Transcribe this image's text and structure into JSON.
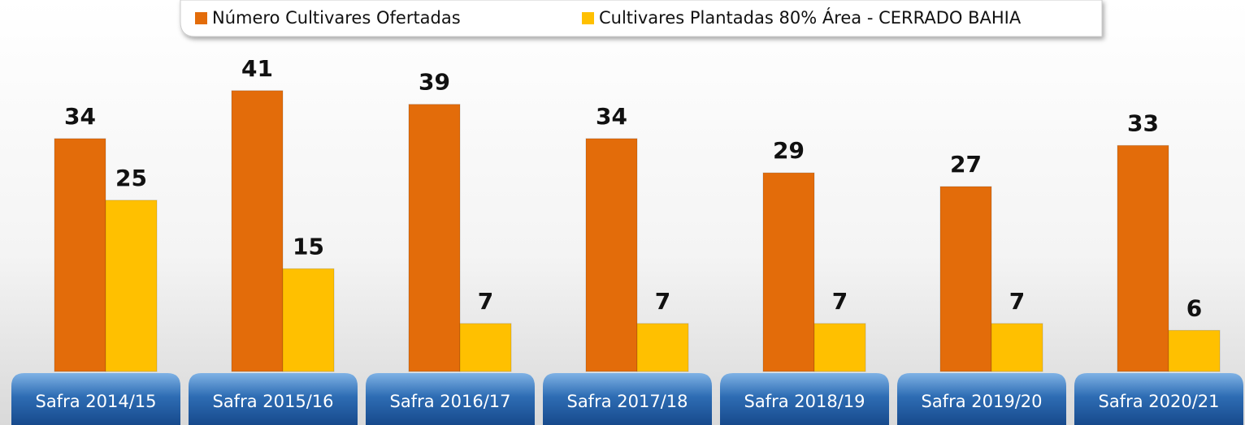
{
  "chart_data": {
    "type": "bar",
    "categories": [
      "Safra 2014/15",
      "Safra 2015/16",
      "Safra 2016/17",
      "Safra 2017/18",
      "Safra 2018/19",
      "Safra 2019/20",
      "Safra 2020/21"
    ],
    "series": [
      {
        "name": "Número Cultivares Ofertadas",
        "color": "#e36c0a",
        "values": [
          34,
          41,
          39,
          34,
          29,
          27,
          33
        ]
      },
      {
        "name": "Cultivares Plantadas 80% Área - CERRADO BAHIA",
        "color": "#ffc000",
        "values": [
          25,
          15,
          7,
          7,
          7,
          7,
          6
        ]
      }
    ],
    "ylim": [
      0,
      54
    ],
    "legend": "top"
  }
}
